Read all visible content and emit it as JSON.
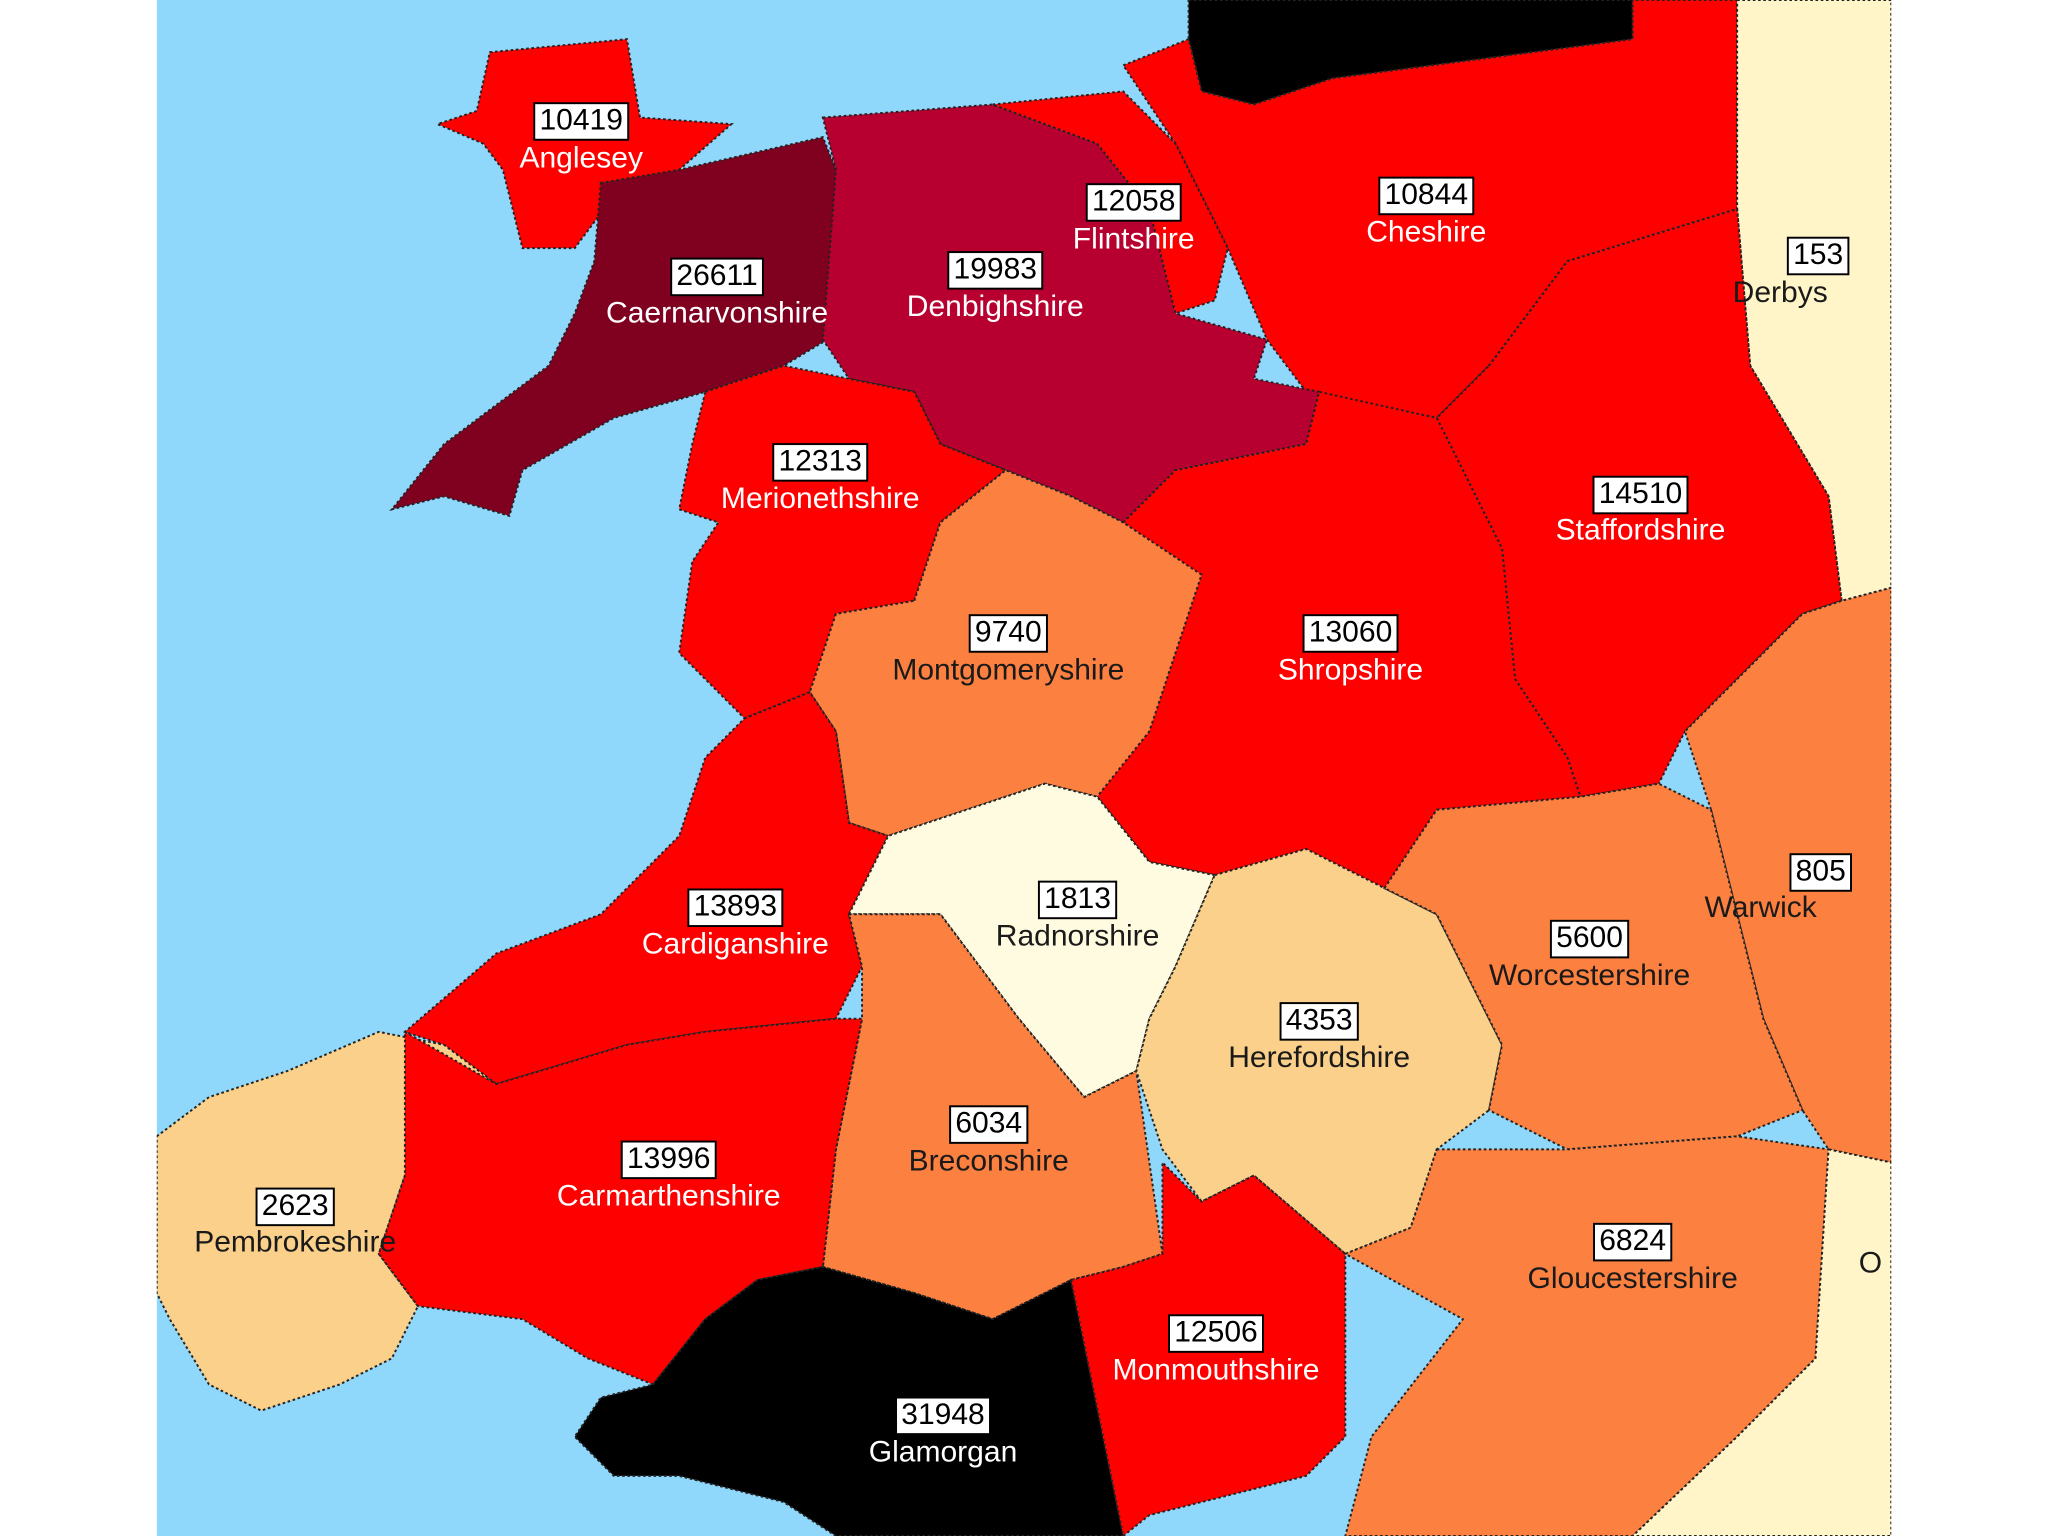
{
  "regions": [
    {
      "name": "Anglesey",
      "value": 10419,
      "color": "#ff0000"
    },
    {
      "name": "Caernarvonshire",
      "value": 26611,
      "color": "#800020"
    },
    {
      "name": "Denbighshire",
      "value": 19983,
      "color": "#b80030"
    },
    {
      "name": "Flintshire",
      "value": 12058,
      "color": "#ff0000"
    },
    {
      "name": "Cheshire",
      "value": 10844,
      "color": "#ff0000"
    },
    {
      "name": "Derbys",
      "value": "153",
      "color": "#fff5c8"
    },
    {
      "name": "Merionethshire",
      "value": 12313,
      "color": "#ff0000"
    },
    {
      "name": "Staffordshire",
      "value": 14510,
      "color": "#ff0000"
    },
    {
      "name": "Montgomeryshire",
      "value": 9740,
      "color": "#fc8040"
    },
    {
      "name": "Shropshire",
      "value": 13060,
      "color": "#ff0000"
    },
    {
      "name": "Cardiganshire",
      "value": 13893,
      "color": "#ff0000"
    },
    {
      "name": "Radnorshire",
      "value": 1813,
      "color": "#fffbe0"
    },
    {
      "name": "Warwick",
      "value": "805",
      "color": "#fc8040"
    },
    {
      "name": "Worcestershire",
      "value": 5600,
      "color": "#fc8040"
    },
    {
      "name": "Herefordshire",
      "value": 4353,
      "color": "#fbd08a"
    },
    {
      "name": "Breconshire",
      "value": 6034,
      "color": "#fc8040"
    },
    {
      "name": "Carmarthenshire",
      "value": 13996,
      "color": "#ff0000"
    },
    {
      "name": "Pembrokeshire",
      "value": 2623,
      "color": "#fbd08a"
    },
    {
      "name": "Gloucestershire",
      "value": 6824,
      "color": "#fc8040"
    },
    {
      "name": "Monmouthshire",
      "value": 12506,
      "color": "#ff0000"
    },
    {
      "name": "Glamorgan",
      "value": 31948,
      "color": "#000000"
    },
    {
      "name": "O",
      "color": "#fff5c8"
    }
  ]
}
